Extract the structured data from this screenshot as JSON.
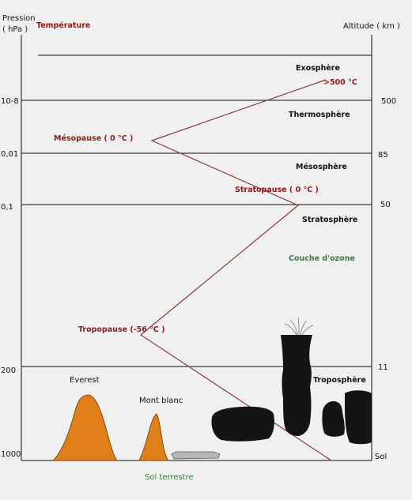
{
  "colors": {
    "temperature_red": "#8b1a1a",
    "ozone_green": "#3a7a3a",
    "mountain_orange": "#e07f1a",
    "rock_black": "#141414",
    "boundary_line": "#111111",
    "curve": "#8b3a3a"
  },
  "header": {
    "pressure_label_line1": "Pression",
    "pressure_label_line2": "( hPa )",
    "temperature_label": "Température",
    "altitude_label": "Altitude ( km )"
  },
  "pressure_ticks": [
    "10-8",
    "0,01",
    "0,1",
    "200",
    "1000"
  ],
  "altitude_ticks": [
    "500",
    "85",
    "50",
    "11",
    "Sol"
  ],
  "layers": {
    "exosphere": "Exosphère",
    "thermosphere": "Thermosphère",
    "mesosphere": "Mésosphère",
    "stratosphere": "Stratosphère",
    "troposphere": "Troposphère",
    "ozone": "Couche d'ozone"
  },
  "temperature_points": {
    "top": ">500 °C",
    "mesopause": "Mésopause ( 0 °C )",
    "stratopause": "Stratopause ( 0 °C )",
    "tropopause": "Tropopause (-56 °C )"
  },
  "mountains": {
    "everest": "Everest",
    "mont_blanc": "Mont blanc"
  },
  "ground": "Sol terrestre"
}
